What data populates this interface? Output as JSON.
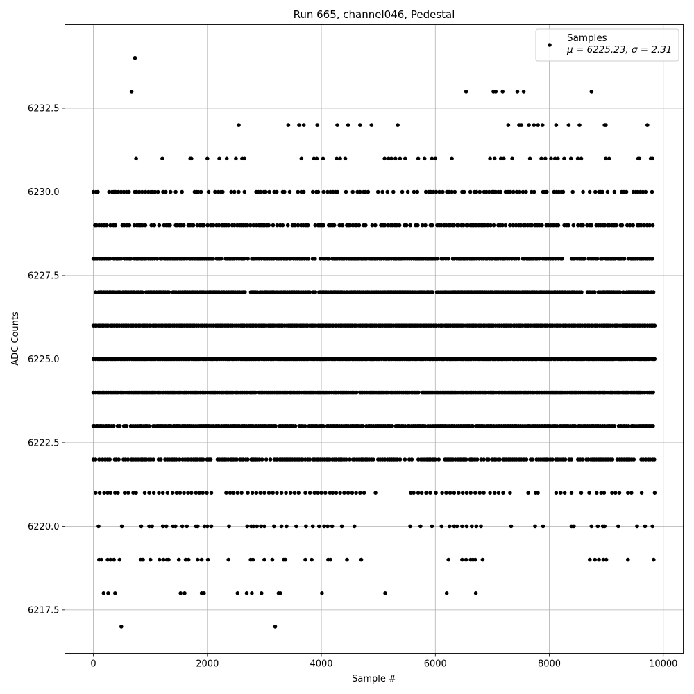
{
  "chart_data": {
    "type": "scatter",
    "title": "Run 665, channel046, Pedestal",
    "xlabel": "Sample #",
    "ylabel": "ADC Counts",
    "xlim": [
      -500,
      10350
    ],
    "ylim": [
      6216.2,
      6235.0
    ],
    "xticks": [
      0,
      2000,
      4000,
      6000,
      8000,
      10000
    ],
    "xtick_labels": [
      "0",
      "2000",
      "4000",
      "6000",
      "8000",
      "10000"
    ],
    "yticks": [
      6217.5,
      6220.0,
      6222.5,
      6225.0,
      6227.5,
      6230.0,
      6232.5
    ],
    "ytick_labels": [
      "6217.5",
      "6220.0",
      "6222.5",
      "6225.0",
      "6227.5",
      "6230.0",
      "6232.5"
    ],
    "grid": true,
    "legend_position": "top-right",
    "marker_color": "#000000",
    "series": [
      {
        "name": "Samples",
        "stats_label": "μ = 6225.23, σ = 2.31",
        "points": [
          [
            730,
            6234
          ],
          [
            670,
            6233
          ],
          [
            6540,
            6233
          ],
          [
            7020,
            6233
          ],
          [
            7060,
            6233
          ],
          [
            7180,
            6233
          ],
          [
            7440,
            6233
          ],
          [
            7550,
            6233
          ],
          [
            8740,
            6233
          ],
          [
            2550,
            6232
          ],
          [
            3420,
            6232
          ],
          [
            3610,
            6232
          ],
          [
            3690,
            6232
          ],
          [
            3930,
            6232
          ],
          [
            4280,
            6232
          ],
          [
            4470,
            6232
          ],
          [
            4680,
            6232
          ],
          [
            4880,
            6232
          ],
          [
            5340,
            6232
          ],
          [
            7280,
            6232
          ],
          [
            7470,
            6232
          ],
          [
            7510,
            6232
          ],
          [
            7640,
            6232
          ],
          [
            7730,
            6232
          ],
          [
            7800,
            6232
          ],
          [
            7880,
            6232
          ],
          [
            8120,
            6232
          ],
          [
            8340,
            6232
          ],
          [
            8530,
            6232
          ],
          [
            8970,
            6232
          ],
          [
            8990,
            6232
          ],
          [
            9720,
            6232
          ],
          [
            750,
            6231
          ],
          [
            1210,
            6231
          ],
          [
            1700,
            6231
          ],
          [
            1720,
            6231
          ],
          [
            2000,
            6231
          ],
          [
            2210,
            6231
          ],
          [
            2340,
            6231
          ],
          [
            2500,
            6231
          ],
          [
            2610,
            6231
          ],
          [
            2650,
            6231
          ],
          [
            3650,
            6231
          ],
          [
            3870,
            6231
          ],
          [
            3920,
            6231
          ],
          [
            4030,
            6231
          ],
          [
            4270,
            6231
          ],
          [
            4330,
            6231
          ],
          [
            4420,
            6231
          ],
          [
            5110,
            6231
          ],
          [
            5180,
            6231
          ],
          [
            5230,
            6231
          ],
          [
            5300,
            6231
          ],
          [
            5380,
            6231
          ],
          [
            5470,
            6231
          ],
          [
            5700,
            6231
          ],
          [
            5810,
            6231
          ],
          [
            5940,
            6231
          ],
          [
            6000,
            6231
          ],
          [
            6290,
            6231
          ],
          [
            6960,
            6231
          ],
          [
            7040,
            6231
          ],
          [
            7150,
            6231
          ],
          [
            7200,
            6231
          ],
          [
            7350,
            6231
          ],
          [
            7660,
            6231
          ],
          [
            7860,
            6231
          ],
          [
            7930,
            6231
          ],
          [
            8030,
            6231
          ],
          [
            8100,
            6231
          ],
          [
            8150,
            6231
          ],
          [
            8260,
            6231
          ],
          [
            8380,
            6231
          ],
          [
            8500,
            6231
          ],
          [
            8560,
            6231
          ],
          [
            8990,
            6231
          ],
          [
            9050,
            6231
          ],
          [
            9560,
            6231
          ],
          [
            9580,
            6231
          ],
          [
            9780,
            6231
          ],
          [
            9810,
            6231
          ],
          [
            490,
            6217
          ],
          [
            3190,
            6217
          ],
          [
            180,
            6218
          ],
          [
            260,
            6218
          ],
          [
            380,
            6218
          ],
          [
            1530,
            6218
          ],
          [
            1600,
            6218
          ],
          [
            1900,
            6218
          ],
          [
            1940,
            6218
          ],
          [
            2530,
            6218
          ],
          [
            2690,
            6218
          ],
          [
            2780,
            6218
          ],
          [
            2950,
            6218
          ],
          [
            3250,
            6218
          ],
          [
            3280,
            6218
          ],
          [
            4010,
            6218
          ],
          [
            5120,
            6218
          ],
          [
            6200,
            6218
          ],
          [
            6710,
            6218
          ],
          [
            100,
            6219
          ],
          [
            140,
            6219
          ],
          [
            250,
            6219
          ],
          [
            300,
            6219
          ],
          [
            360,
            6219
          ],
          [
            460,
            6219
          ],
          [
            830,
            6219
          ],
          [
            870,
            6219
          ],
          [
            1000,
            6219
          ],
          [
            1160,
            6219
          ],
          [
            1230,
            6219
          ],
          [
            1290,
            6219
          ],
          [
            1320,
            6219
          ],
          [
            1500,
            6219
          ],
          [
            1620,
            6219
          ],
          [
            1670,
            6219
          ],
          [
            1830,
            6219
          ],
          [
            1900,
            6219
          ],
          [
            2010,
            6219
          ],
          [
            2370,
            6219
          ],
          [
            2760,
            6219
          ],
          [
            2800,
            6219
          ],
          [
            3000,
            6219
          ],
          [
            3140,
            6219
          ],
          [
            3340,
            6219
          ],
          [
            3370,
            6219
          ],
          [
            3720,
            6219
          ],
          [
            3830,
            6219
          ],
          [
            4120,
            6219
          ],
          [
            4160,
            6219
          ],
          [
            4450,
            6219
          ],
          [
            4700,
            6219
          ],
          [
            6230,
            6219
          ],
          [
            6470,
            6219
          ],
          [
            6540,
            6219
          ],
          [
            6620,
            6219
          ],
          [
            6660,
            6219
          ],
          [
            6700,
            6219
          ],
          [
            6830,
            6219
          ],
          [
            8710,
            6219
          ],
          [
            8800,
            6219
          ],
          [
            8870,
            6219
          ],
          [
            8950,
            6219
          ],
          [
            9000,
            6219
          ],
          [
            9380,
            6219
          ],
          [
            9830,
            6219
          ],
          [
            90,
            6220
          ],
          [
            500,
            6220
          ],
          [
            840,
            6220
          ],
          [
            980,
            6220
          ],
          [
            1030,
            6220
          ],
          [
            1220,
            6220
          ],
          [
            1280,
            6220
          ],
          [
            1400,
            6220
          ],
          [
            1440,
            6220
          ],
          [
            1560,
            6220
          ],
          [
            1640,
            6220
          ],
          [
            1800,
            6220
          ],
          [
            1830,
            6220
          ],
          [
            1950,
            6220
          ],
          [
            2000,
            6220
          ],
          [
            2070,
            6220
          ],
          [
            2380,
            6220
          ],
          [
            2700,
            6220
          ],
          [
            2770,
            6220
          ],
          [
            2810,
            6220
          ],
          [
            2870,
            6220
          ],
          [
            2940,
            6220
          ],
          [
            3000,
            6220
          ],
          [
            3170,
            6220
          ],
          [
            3300,
            6220
          ],
          [
            3390,
            6220
          ],
          [
            3560,
            6220
          ],
          [
            3730,
            6220
          ],
          [
            3850,
            6220
          ],
          [
            3960,
            6220
          ],
          [
            4050,
            6220
          ],
          [
            4110,
            6220
          ],
          [
            4190,
            6220
          ],
          [
            4360,
            6220
          ],
          [
            4580,
            6220
          ],
          [
            5560,
            6220
          ],
          [
            5740,
            6220
          ],
          [
            5940,
            6220
          ],
          [
            6110,
            6220
          ],
          [
            6250,
            6220
          ],
          [
            6330,
            6220
          ],
          [
            6380,
            6220
          ],
          [
            6470,
            6220
          ],
          [
            6550,
            6220
          ],
          [
            6640,
            6220
          ],
          [
            6720,
            6220
          ],
          [
            6800,
            6220
          ],
          [
            7330,
            6220
          ],
          [
            7750,
            6220
          ],
          [
            7890,
            6220
          ],
          [
            8390,
            6220
          ],
          [
            8430,
            6220
          ],
          [
            8740,
            6220
          ],
          [
            8850,
            6220
          ],
          [
            8940,
            6220
          ],
          [
            8970,
            6220
          ],
          [
            9210,
            6220
          ],
          [
            9540,
            6220
          ],
          [
            9680,
            6220
          ],
          [
            9810,
            6220
          ],
          [
            40,
            6221
          ],
          [
            110,
            6221
          ],
          [
            190,
            6221
          ],
          [
            250,
            6221
          ],
          [
            300,
            6221
          ],
          [
            380,
            6221
          ],
          [
            430,
            6221
          ],
          [
            550,
            6221
          ],
          [
            610,
            6221
          ],
          [
            700,
            6221
          ],
          [
            750,
            6221
          ],
          [
            900,
            6221
          ],
          [
            980,
            6221
          ],
          [
            1060,
            6221
          ],
          [
            1150,
            6221
          ],
          [
            1220,
            6221
          ],
          [
            1300,
            6221
          ],
          [
            1390,
            6221
          ],
          [
            1460,
            6221
          ],
          [
            1520,
            6221
          ],
          [
            1590,
            6221
          ],
          [
            1660,
            6221
          ],
          [
            1720,
            6221
          ],
          [
            1800,
            6221
          ],
          [
            1860,
            6221
          ],
          [
            1920,
            6221
          ],
          [
            1990,
            6221
          ],
          [
            2070,
            6221
          ],
          [
            2330,
            6221
          ],
          [
            2400,
            6221
          ],
          [
            2460,
            6221
          ],
          [
            2530,
            6221
          ],
          [
            2600,
            6221
          ],
          [
            2710,
            6221
          ],
          [
            2790,
            6221
          ],
          [
            2860,
            6221
          ],
          [
            2930,
            6221
          ],
          [
            3000,
            6221
          ],
          [
            3080,
            6221
          ],
          [
            3150,
            6221
          ],
          [
            3220,
            6221
          ],
          [
            3300,
            6221
          ],
          [
            3380,
            6221
          ],
          [
            3460,
            6221
          ],
          [
            3530,
            6221
          ],
          [
            3600,
            6221
          ],
          [
            3720,
            6221
          ],
          [
            3800,
            6221
          ],
          [
            3880,
            6221
          ],
          [
            3940,
            6221
          ],
          [
            4000,
            6221
          ],
          [
            4070,
            6221
          ],
          [
            4150,
            6221
          ],
          [
            4200,
            6221
          ],
          [
            4260,
            6221
          ],
          [
            4330,
            6221
          ],
          [
            4400,
            6221
          ],
          [
            4470,
            6221
          ],
          [
            4540,
            6221
          ],
          [
            4610,
            6221
          ],
          [
            4680,
            6221
          ],
          [
            4750,
            6221
          ],
          [
            4950,
            6221
          ],
          [
            5570,
            6221
          ],
          [
            5620,
            6221
          ],
          [
            5700,
            6221
          ],
          [
            5760,
            6221
          ],
          [
            5840,
            6221
          ],
          [
            5910,
            6221
          ],
          [
            6010,
            6221
          ],
          [
            6120,
            6221
          ],
          [
            6190,
            6221
          ],
          [
            6260,
            6221
          ],
          [
            6330,
            6221
          ],
          [
            6410,
            6221
          ],
          [
            6480,
            6221
          ],
          [
            6550,
            6221
          ],
          [
            6620,
            6221
          ],
          [
            6700,
            6221
          ],
          [
            6780,
            6221
          ],
          [
            6850,
            6221
          ],
          [
            6960,
            6221
          ],
          [
            7040,
            6221
          ],
          [
            7110,
            6221
          ],
          [
            7190,
            6221
          ],
          [
            7310,
            6221
          ],
          [
            7630,
            6221
          ],
          [
            7760,
            6221
          ],
          [
            7800,
            6221
          ],
          [
            8120,
            6221
          ],
          [
            8200,
            6221
          ],
          [
            8270,
            6221
          ],
          [
            8390,
            6221
          ],
          [
            8560,
            6221
          ],
          [
            8700,
            6221
          ],
          [
            8830,
            6221
          ],
          [
            8910,
            6221
          ],
          [
            8960,
            6221
          ],
          [
            9100,
            6221
          ],
          [
            9160,
            6221
          ],
          [
            9230,
            6221
          ],
          [
            9380,
            6221
          ],
          [
            9440,
            6221
          ],
          [
            9620,
            6221
          ],
          [
            9850,
            6221
          ]
        ]
      }
    ]
  }
}
